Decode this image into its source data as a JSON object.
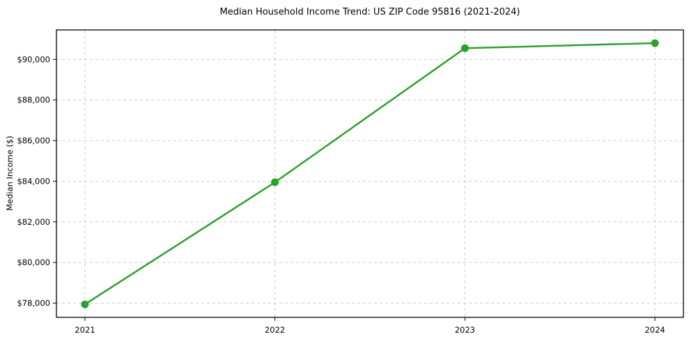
{
  "chart_data": {
    "type": "line",
    "title": "Median Household Income Trend: US ZIP Code 95816 (2021-2024)",
    "xlabel": "",
    "ylabel": "Median Income ($)",
    "x": [
      2021,
      2022,
      2023,
      2024
    ],
    "series": [
      {
        "name": "Median Household Income",
        "values": [
          77940,
          83950,
          90550,
          90800
        ]
      }
    ],
    "xtick_labels": [
      "2021",
      "2022",
      "2023",
      "2024"
    ],
    "yticks": [
      78000,
      80000,
      82000,
      84000,
      86000,
      88000,
      90000
    ],
    "ytick_labels": [
      "$78,000",
      "$80,000",
      "$82,000",
      "$84,000",
      "$86,000",
      "$88,000",
      "$90,000"
    ],
    "xlim": [
      2020.85,
      2024.15
    ],
    "ylim": [
      77300,
      91450
    ],
    "grid": true,
    "grid_style": "dashed",
    "legend_position": "none",
    "colors": {
      "line": "#2ca02c",
      "marker": "#2ca02c",
      "grid": "#cccccc",
      "axis": "#000000",
      "background": "#ffffff",
      "text": "#000000"
    }
  }
}
